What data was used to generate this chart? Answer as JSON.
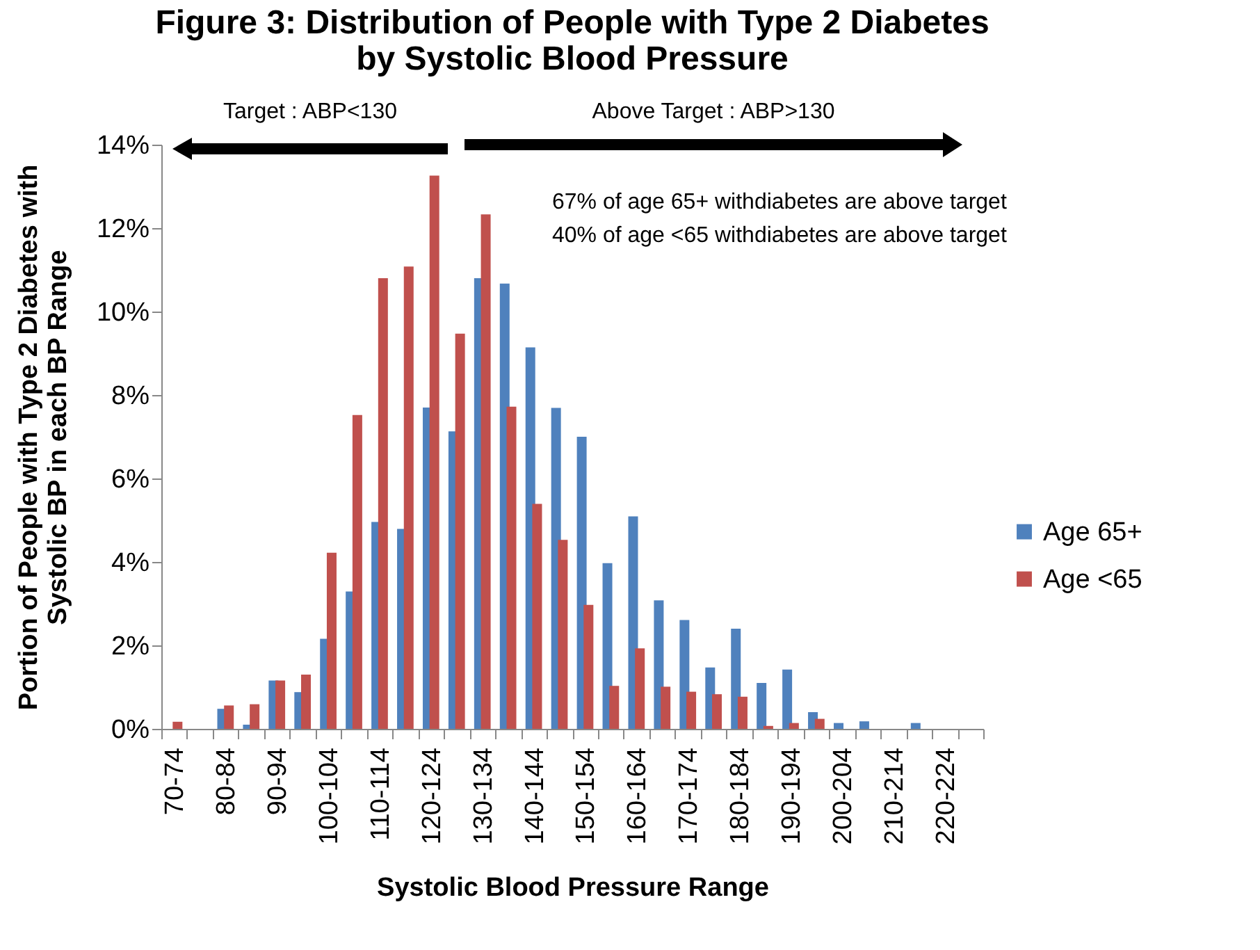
{
  "chart_data": {
    "type": "bar",
    "title": "Figure 3: Distribution of People with Type 2 Diabetes\nby Systolic Blood Pressure",
    "xlabel": "Systolic Blood Pressure Range",
    "ylabel": "Portion of People with Type 2 Diabetes with\nSystolic BP in each BP Range",
    "categories": [
      "70-74",
      null,
      "80-84",
      null,
      "90-94",
      null,
      "100-104",
      null,
      "110-114",
      null,
      "120-124",
      null,
      "130-134",
      null,
      "140-144",
      null,
      "150-154",
      null,
      "160-164",
      null,
      "170-174",
      null,
      "180-184",
      null,
      "190-194",
      null,
      "200-204",
      null,
      "210-214",
      null,
      "220-224",
      null
    ],
    "series": [
      {
        "name": "Age 65+",
        "color": "#4f81bd",
        "values": [
          0,
          0,
          0.48,
          0.1,
          1.16,
          0.88,
          2.16,
          3.29,
          4.96,
          4.79,
          7.7,
          7.13,
          10.8,
          10.67,
          9.14,
          7.69,
          7.0,
          3.97,
          5.09,
          3.08,
          2.61,
          1.47,
          2.4,
          1.1,
          1.42,
          0.4,
          0.14,
          0.18,
          0,
          0.14,
          0,
          0
        ]
      },
      {
        "name": "Age <65",
        "color": "#c0504d",
        "values": [
          0.17,
          0,
          0.56,
          0.59,
          1.16,
          1.3,
          4.22,
          7.52,
          10.8,
          11.08,
          13.26,
          9.47,
          12.33,
          7.72,
          5.39,
          4.53,
          2.97,
          1.03,
          1.93,
          1.01,
          0.89,
          0.83,
          0.77,
          0.07,
          0.14,
          0.24,
          0,
          0,
          0,
          0,
          0,
          0
        ]
      }
    ],
    "ylim": [
      0,
      14
    ],
    "yticks": [
      {
        "value": 0,
        "label": "0%"
      },
      {
        "value": 2,
        "label": "2%"
      },
      {
        "value": 4,
        "label": "4%"
      },
      {
        "value": 6,
        "label": "6%"
      },
      {
        "value": 8,
        "label": "8%"
      },
      {
        "value": 10,
        "label": "10%"
      },
      {
        "value": 12,
        "label": "12%"
      },
      {
        "value": 14,
        "label": "14%"
      }
    ],
    "grid": false,
    "legend": "right",
    "annotations": [
      "Target : ABP<130",
      "Above Target : ABP>130",
      "67% of age 65+ withdiabetes are above target",
      "40% of age <65 withdiabetes are above target"
    ]
  }
}
